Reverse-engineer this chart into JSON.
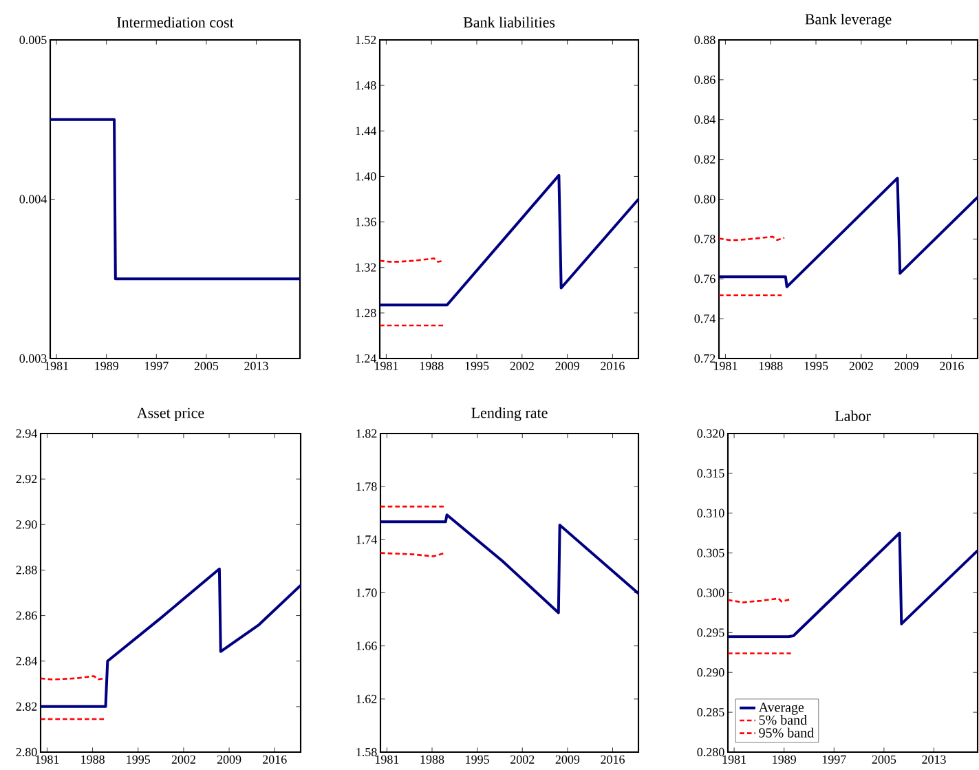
{
  "chart_data": [
    {
      "type": "line",
      "title": "Intermediation cost",
      "xlim": [
        1980,
        2020
      ],
      "xticks": [
        1981,
        1989,
        1997,
        2005,
        2013
      ],
      "ylim": [
        0.003,
        0.005
      ],
      "yticks": [
        0.003,
        0.004,
        0.005
      ],
      "grid": false,
      "series": [
        {
          "color": "#000080",
          "line_style": "solid",
          "x": [
            1980,
            1990.25,
            1990.45,
            2020
          ],
          "values": [
            0.0045,
            0.0045,
            0.0035,
            0.0035
          ]
        }
      ]
    },
    {
      "type": "line",
      "title": "Bank liabilities",
      "xlim": [
        1980,
        2020
      ],
      "xticks": [
        1981,
        1988,
        1995,
        2002,
        2009,
        2016
      ],
      "ylim": [
        1.24,
        1.52
      ],
      "yticks": [
        1.24,
        1.28,
        1.32,
        1.36,
        {
          "value": 1.4,
          "label": "1.40"
        },
        1.44,
        1.48,
        1.52
      ],
      "grid": false,
      "series": [
        {
          "color": "#000080",
          "line_style": "solid",
          "x": [
            1980,
            1990.4,
            2007.7,
            2008.05,
            2020
          ],
          "values": [
            1.287,
            1.287,
            1.401,
            1.302,
            1.38
          ]
        },
        {
          "color": "#ff0000",
          "line_style": "dashed",
          "x": [
            1980,
            1989.9
          ],
          "values": [
            1.269,
            1.269
          ]
        },
        {
          "color": "#ff0000",
          "line_style": "dashed",
          "x": [
            1980,
            1981.5,
            1983,
            1985.4,
            1988.4,
            1989,
            1989.9
          ],
          "values": [
            1.326,
            1.325,
            1.325,
            1.326,
            1.328,
            1.325,
            1.326
          ]
        }
      ]
    },
    {
      "type": "line",
      "title": "Bank leverage",
      "xlim": [
        1980,
        2020
      ],
      "xticks": [
        1981,
        1988,
        1995,
        2002,
        2009,
        2016
      ],
      "ylim": [
        0.72,
        0.88
      ],
      "yticks": [
        0.72,
        0.74,
        0.76,
        0.78,
        {
          "value": 0.8,
          "label": "0.80"
        },
        0.82,
        0.84,
        0.86,
        0.88
      ],
      "grid": false,
      "series": [
        {
          "color": "#000080",
          "line_style": "solid",
          "x": [
            1980,
            1990.3,
            1990.5,
            2007.6,
            2008.0,
            2020
          ],
          "values": [
            0.761,
            0.761,
            0.756,
            0.8106,
            0.7628,
            0.801
          ]
        },
        {
          "color": "#ff0000",
          "line_style": "dashed",
          "x": [
            1980,
            1989.7
          ],
          "values": [
            0.7518,
            0.7518
          ]
        },
        {
          "color": "#ff0000",
          "line_style": "dashed",
          "x": [
            1980,
            1981.6,
            1983,
            1985.5,
            1988.3,
            1989,
            1990.1
          ],
          "values": [
            0.7803,
            0.7795,
            0.7795,
            0.7802,
            0.7812,
            0.7795,
            0.7806
          ]
        }
      ]
    },
    {
      "type": "line",
      "title": "Asset price",
      "xlim": [
        1980,
        2020
      ],
      "xticks": [
        1981,
        1988,
        1995,
        2002,
        2009,
        2016
      ],
      "ylim": [
        2.8,
        2.94
      ],
      "yticks": [
        {
          "value": 2.8,
          "label": "2.80"
        },
        2.82,
        2.84,
        2.86,
        2.88,
        {
          "value": 2.9,
          "label": "2.90"
        },
        2.92,
        2.94
      ],
      "grid": false,
      "series": [
        {
          "color": "#000080",
          "line_style": "solid",
          "x": [
            1980,
            1990.0,
            1990.3,
            1998.4,
            2007.5,
            2007.7,
            2013.6,
            2020
          ],
          "values": [
            2.82,
            2.82,
            2.84,
            2.8587,
            2.8805,
            2.8442,
            2.856,
            2.8733
          ]
        },
        {
          "color": "#ff0000",
          "line_style": "dashed",
          "x": [
            1980,
            1989.8
          ],
          "values": [
            2.8145,
            2.8145
          ]
        },
        {
          "color": "#ff0000",
          "line_style": "dashed",
          "x": [
            1980,
            1981.8,
            1985.4,
            1988.2,
            1988.9,
            1989.8
          ],
          "values": [
            2.8324,
            2.8319,
            2.8324,
            2.8334,
            2.832,
            2.8324
          ]
        }
      ]
    },
    {
      "type": "line",
      "title": "Lending rate",
      "xlim": [
        1980,
        2020
      ],
      "xticks": [
        1981,
        1988,
        1995,
        2002,
        2009,
        2016
      ],
      "ylim": [
        1.58,
        1.82
      ],
      "yticks": [
        1.58,
        1.62,
        1.66,
        {
          "value": 1.7,
          "label": "1.70"
        },
        1.74,
        1.78,
        1.82
      ],
      "grid": false,
      "series": [
        {
          "color": "#000080",
          "line_style": "solid",
          "x": [
            1980,
            1990.1,
            1990.3,
            1998.9,
            2007.6,
            2007.8,
            2020
          ],
          "values": [
            1.7535,
            1.7535,
            1.7587,
            1.724,
            1.685,
            1.751,
            1.6995
          ]
        },
        {
          "color": "#ff0000",
          "line_style": "dashed",
          "x": [
            1980,
            1985,
            1988.2,
            1990
          ],
          "values": [
            1.73,
            1.729,
            1.7275,
            1.73
          ]
        },
        {
          "color": "#ff0000",
          "line_style": "dashed",
          "x": [
            1980,
            1989.8
          ],
          "values": [
            1.765,
            1.765
          ]
        }
      ]
    },
    {
      "type": "line",
      "title": "Labor",
      "xlim": [
        1980,
        2020
      ],
      "xticks": [
        1981,
        1989,
        1997,
        2005,
        2013
      ],
      "ylim": [
        0.28,
        0.32
      ],
      "yticks": [
        {
          "value": 0.28,
          "label": "0.280"
        },
        0.285,
        {
          "value": 0.29,
          "label": "0.290"
        },
        0.295,
        {
          "value": 0.3,
          "label": "0.300"
        },
        0.305,
        {
          "value": 0.31,
          "label": "0.310"
        },
        0.315,
        {
          "value": 0.32,
          "label": "0.320"
        }
      ],
      "grid": false,
      "legend": "bottom left",
      "series": [
        {
          "name": "Average",
          "color": "#000080",
          "line_style": "solid",
          "x": [
            1980,
            1989.7,
            1990.5,
            2007.5,
            2007.8,
            2020
          ],
          "values": [
            0.2945,
            0.2945,
            0.2946,
            0.3075,
            0.2961,
            0.3053
          ]
        },
        {
          "name": "5% band",
          "color": "#ff0000",
          "line_style": "dashed",
          "x": [
            1980,
            1990.1
          ],
          "values": [
            0.2924,
            0.2924
          ]
        },
        {
          "name": "95% band",
          "color": "#ff0000",
          "line_style": "dashed",
          "x": [
            1980,
            1982.4,
            1985.3,
            1988.1,
            1988.6,
            1990.1
          ],
          "values": [
            0.2991,
            0.2988,
            0.299,
            0.2993,
            0.2989,
            0.2992
          ]
        }
      ]
    }
  ]
}
